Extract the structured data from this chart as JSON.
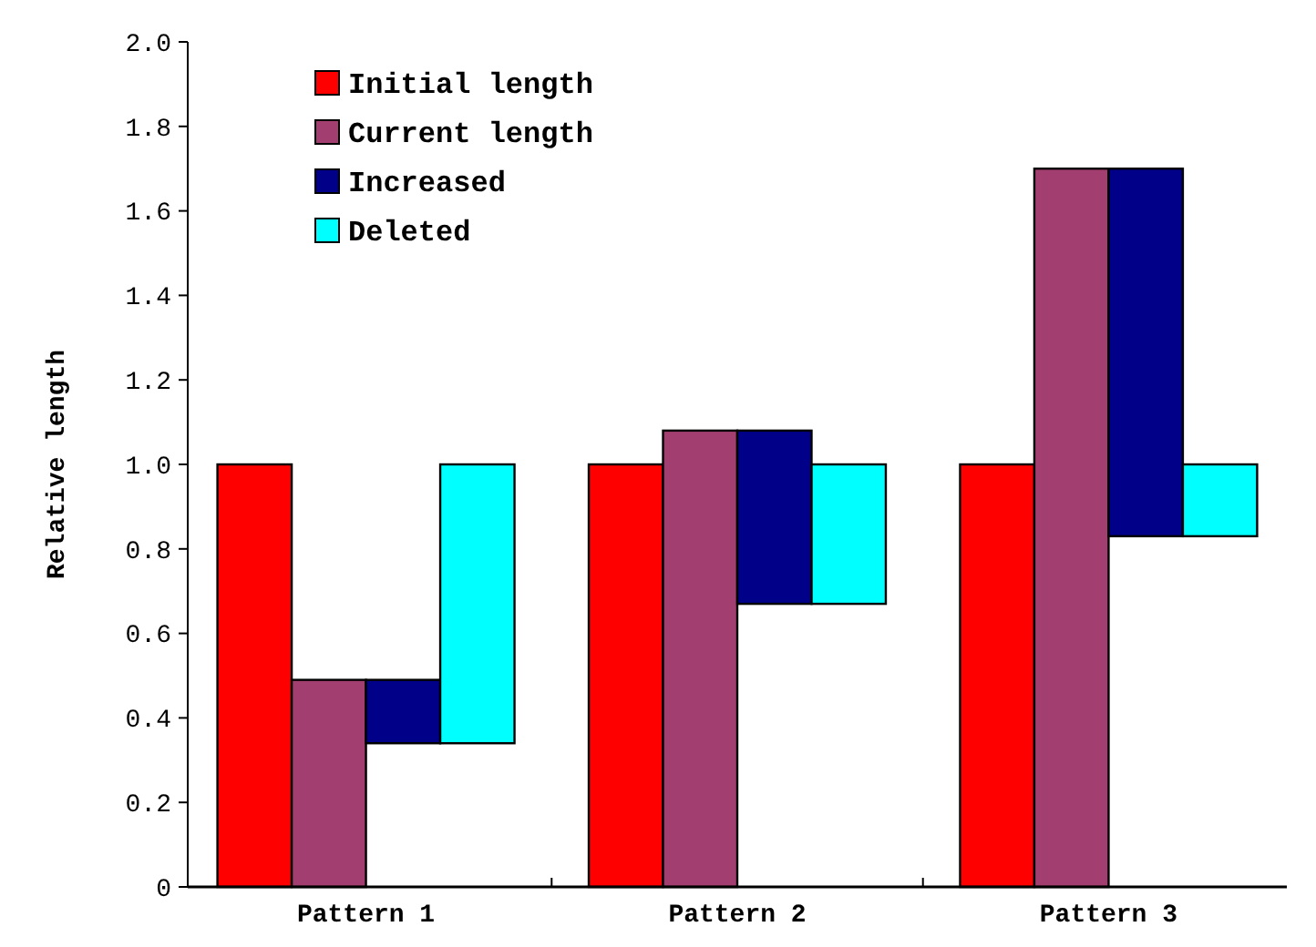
{
  "chart_data": {
    "type": "bar",
    "ylabel": "Relative length",
    "categories": [
      "Pattern 1",
      "Pattern 2",
      "Pattern 3"
    ],
    "series": [
      {
        "name": "Initial length",
        "color": "#ff0000",
        "values": [
          1.0,
          1.0,
          1.0
        ]
      },
      {
        "name": "Current length",
        "color": "#a33e70",
        "values": [
          0.49,
          1.08,
          1.7
        ]
      },
      {
        "name": "Increased",
        "color": "#000088",
        "base": [
          0.34,
          0.67,
          0.83
        ],
        "values": [
          0.15,
          0.41,
          0.87
        ]
      },
      {
        "name": "Deleted",
        "color": "#00ffff",
        "base": [
          0.34,
          0.67,
          0.83
        ],
        "values": [
          0.66,
          0.33,
          0.17
        ]
      }
    ],
    "ylim": [
      0,
      2
    ],
    "yticks": [
      {
        "value": 0,
        "label": "0"
      },
      {
        "value": 0.2,
        "label": "0.2"
      },
      {
        "value": 0.4,
        "label": "0.4"
      },
      {
        "value": 0.6,
        "label": "0.6"
      },
      {
        "value": 0.8,
        "label": "0.8"
      },
      {
        "value": 1,
        "label": "1.0"
      },
      {
        "value": 1.2,
        "label": "1.2"
      },
      {
        "value": 1.4,
        "label": "1.4"
      },
      {
        "value": 1.6,
        "label": "1.6"
      },
      {
        "value": 1.8,
        "label": "1.8"
      },
      {
        "value": 2,
        "label": "2.0"
      }
    ],
    "grid": false,
    "legend": "top left"
  }
}
